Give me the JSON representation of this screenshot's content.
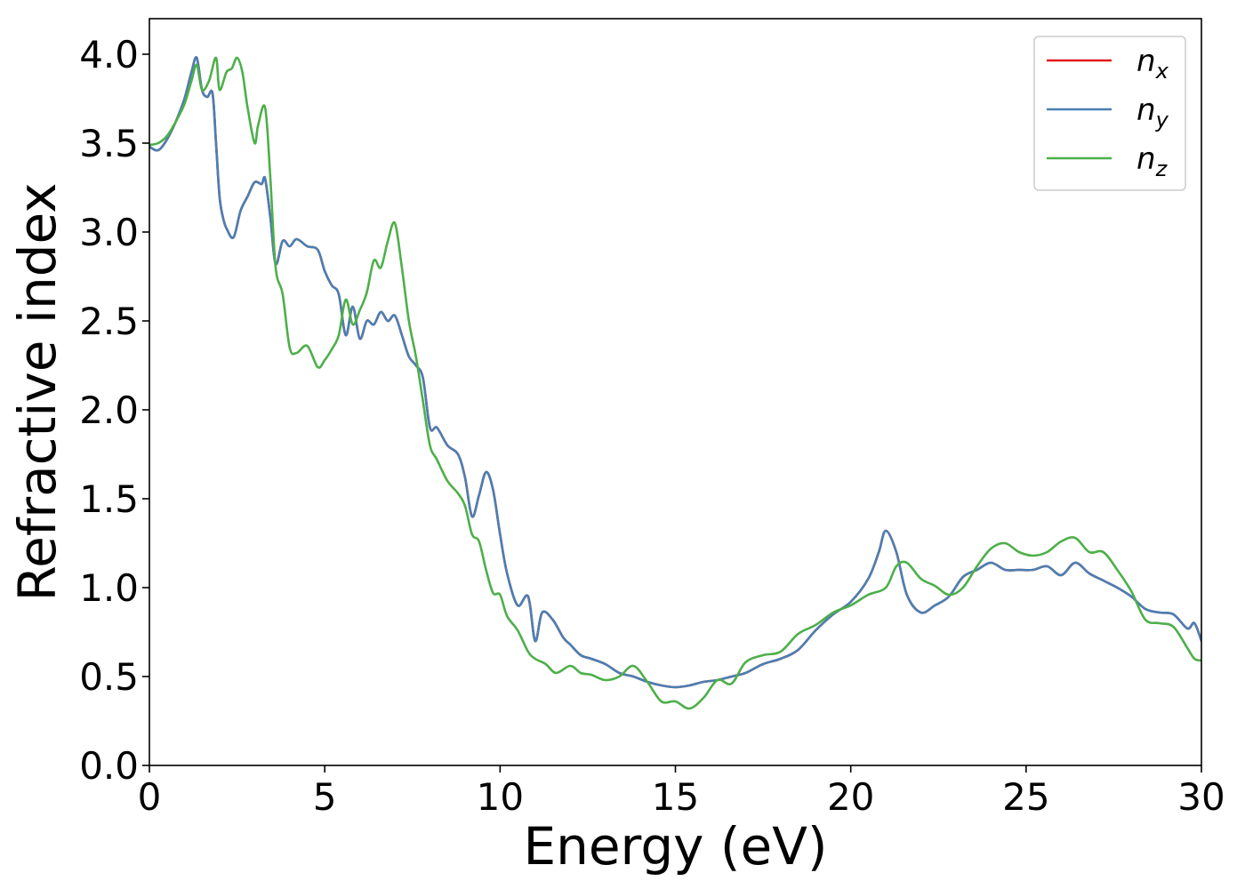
{
  "chart_data": {
    "type": "line",
    "title": "",
    "xlabel": "Energy (eV)",
    "ylabel": "Refractive index",
    "xlim": [
      0,
      30
    ],
    "ylim": [
      0,
      4.2
    ],
    "xticks": [
      0,
      5,
      10,
      15,
      20,
      25,
      30
    ],
    "yticks": [
      0.0,
      0.5,
      1.0,
      1.5,
      2.0,
      2.5,
      3.0,
      3.5,
      4.0
    ],
    "xtick_labels": [
      "0",
      "5",
      "10",
      "15",
      "20",
      "25",
      "30"
    ],
    "ytick_labels": [
      "0.0",
      "0.5",
      "1.0",
      "1.5",
      "2.0",
      "2.5",
      "3.0",
      "3.5",
      "4.0"
    ],
    "grid": false,
    "legend_position": "top-right",
    "series": [
      {
        "name": "n_x",
        "label_main": "n",
        "label_sub": "x",
        "color": "#e41a1c",
        "x": [
          0,
          0.25,
          0.5,
          0.75,
          1.0,
          1.2,
          1.35,
          1.5,
          1.65,
          1.8,
          1.9,
          2.0,
          2.1,
          2.2,
          2.4,
          2.6,
          2.8,
          3.0,
          3.2,
          3.3,
          3.45,
          3.6,
          3.8,
          4.0,
          4.2,
          4.5,
          4.8,
          5.0,
          5.2,
          5.4,
          5.6,
          5.8,
          6.0,
          6.2,
          6.4,
          6.6,
          6.8,
          7.0,
          7.2,
          7.4,
          7.6,
          7.8,
          8.0,
          8.2,
          8.5,
          8.8,
          9.0,
          9.2,
          9.4,
          9.6,
          9.8,
          10.0,
          10.2,
          10.5,
          10.8,
          11.0,
          11.2,
          11.5,
          11.8,
          12.0,
          12.3,
          12.6,
          13.0,
          13.4,
          13.8,
          14.2,
          14.6,
          15.0,
          15.4,
          15.8,
          16.2,
          16.6,
          17.0,
          17.5,
          18.0,
          18.5,
          19.0,
          19.5,
          20.0,
          20.5,
          20.8,
          21.0,
          21.3,
          21.6,
          22.0,
          22.4,
          22.8,
          23.2,
          23.6,
          24.0,
          24.4,
          24.8,
          25.2,
          25.6,
          26.0,
          26.4,
          26.8,
          27.2,
          27.6,
          28.0,
          28.4,
          28.8,
          29.2,
          29.6,
          29.8,
          30.0
        ],
        "values": [
          3.48,
          3.46,
          3.52,
          3.62,
          3.75,
          3.9,
          3.98,
          3.8,
          3.76,
          3.78,
          3.5,
          3.2,
          3.08,
          3.02,
          2.97,
          3.12,
          3.2,
          3.28,
          3.27,
          3.3,
          3.08,
          2.82,
          2.95,
          2.92,
          2.96,
          2.92,
          2.9,
          2.78,
          2.7,
          2.65,
          2.42,
          2.58,
          2.4,
          2.5,
          2.48,
          2.55,
          2.5,
          2.53,
          2.42,
          2.3,
          2.25,
          2.18,
          1.9,
          1.9,
          1.8,
          1.75,
          1.62,
          1.4,
          1.52,
          1.65,
          1.55,
          1.3,
          1.08,
          0.9,
          0.95,
          0.7,
          0.86,
          0.82,
          0.72,
          0.68,
          0.62,
          0.6,
          0.57,
          0.52,
          0.5,
          0.47,
          0.45,
          0.44,
          0.45,
          0.47,
          0.48,
          0.5,
          0.52,
          0.57,
          0.6,
          0.65,
          0.76,
          0.85,
          0.92,
          1.05,
          1.2,
          1.32,
          1.2,
          0.96,
          0.86,
          0.9,
          0.95,
          1.06,
          1.1,
          1.14,
          1.1,
          1.1,
          1.1,
          1.12,
          1.07,
          1.14,
          1.08,
          1.04,
          1.0,
          0.95,
          0.88,
          0.86,
          0.85,
          0.77,
          0.8,
          0.7
        ]
      },
      {
        "name": "n_y",
        "label_main": "n",
        "label_sub": "y",
        "color": "#4a7fb3",
        "x": [
          0,
          0.25,
          0.5,
          0.75,
          1.0,
          1.2,
          1.35,
          1.5,
          1.65,
          1.8,
          1.9,
          2.0,
          2.1,
          2.2,
          2.4,
          2.6,
          2.8,
          3.0,
          3.2,
          3.3,
          3.45,
          3.6,
          3.8,
          4.0,
          4.2,
          4.5,
          4.8,
          5.0,
          5.2,
          5.4,
          5.6,
          5.8,
          6.0,
          6.2,
          6.4,
          6.6,
          6.8,
          7.0,
          7.2,
          7.4,
          7.6,
          7.8,
          8.0,
          8.2,
          8.5,
          8.8,
          9.0,
          9.2,
          9.4,
          9.6,
          9.8,
          10.0,
          10.2,
          10.5,
          10.8,
          11.0,
          11.2,
          11.5,
          11.8,
          12.0,
          12.3,
          12.6,
          13.0,
          13.4,
          13.8,
          14.2,
          14.6,
          15.0,
          15.4,
          15.8,
          16.2,
          16.6,
          17.0,
          17.5,
          18.0,
          18.5,
          19.0,
          19.5,
          20.0,
          20.5,
          20.8,
          21.0,
          21.3,
          21.6,
          22.0,
          22.4,
          22.8,
          23.2,
          23.6,
          24.0,
          24.4,
          24.8,
          25.2,
          25.6,
          26.0,
          26.4,
          26.8,
          27.2,
          27.6,
          28.0,
          28.4,
          28.8,
          29.2,
          29.6,
          29.8,
          30.0
        ],
        "values": [
          3.48,
          3.46,
          3.52,
          3.62,
          3.75,
          3.9,
          3.98,
          3.8,
          3.76,
          3.78,
          3.5,
          3.2,
          3.08,
          3.02,
          2.97,
          3.12,
          3.2,
          3.28,
          3.27,
          3.3,
          3.08,
          2.82,
          2.95,
          2.92,
          2.96,
          2.92,
          2.9,
          2.78,
          2.7,
          2.65,
          2.42,
          2.58,
          2.4,
          2.5,
          2.48,
          2.55,
          2.5,
          2.53,
          2.42,
          2.3,
          2.25,
          2.18,
          1.9,
          1.9,
          1.8,
          1.75,
          1.62,
          1.4,
          1.52,
          1.65,
          1.55,
          1.3,
          1.08,
          0.9,
          0.95,
          0.7,
          0.86,
          0.82,
          0.72,
          0.68,
          0.62,
          0.6,
          0.57,
          0.52,
          0.5,
          0.47,
          0.45,
          0.44,
          0.45,
          0.47,
          0.48,
          0.5,
          0.52,
          0.57,
          0.6,
          0.65,
          0.76,
          0.85,
          0.92,
          1.05,
          1.2,
          1.32,
          1.2,
          0.96,
          0.86,
          0.9,
          0.95,
          1.06,
          1.1,
          1.14,
          1.1,
          1.1,
          1.1,
          1.12,
          1.07,
          1.14,
          1.08,
          1.04,
          1.0,
          0.95,
          0.88,
          0.86,
          0.85,
          0.77,
          0.8,
          0.7
        ]
      },
      {
        "name": "n_z",
        "label_main": "n",
        "label_sub": "z",
        "color": "#4daf4a",
        "x": [
          0,
          0.25,
          0.5,
          0.75,
          1.0,
          1.2,
          1.35,
          1.5,
          1.7,
          1.9,
          2.0,
          2.2,
          2.35,
          2.5,
          2.65,
          2.8,
          3.0,
          3.1,
          3.3,
          3.45,
          3.6,
          3.8,
          4.0,
          4.2,
          4.5,
          4.8,
          5.0,
          5.2,
          5.4,
          5.6,
          5.8,
          6.0,
          6.2,
          6.4,
          6.6,
          6.8,
          7.0,
          7.2,
          7.4,
          7.6,
          7.8,
          8.0,
          8.2,
          8.5,
          8.8,
          9.0,
          9.2,
          9.4,
          9.6,
          9.8,
          10.0,
          10.2,
          10.5,
          10.8,
          11.0,
          11.3,
          11.6,
          12.0,
          12.3,
          12.6,
          13.0,
          13.4,
          13.8,
          14.2,
          14.6,
          15.0,
          15.4,
          15.8,
          16.2,
          16.6,
          17.0,
          17.5,
          18.0,
          18.5,
          19.0,
          19.5,
          20.0,
          20.5,
          21.0,
          21.3,
          21.6,
          22.0,
          22.4,
          22.8,
          23.2,
          23.6,
          24.0,
          24.4,
          24.8,
          25.2,
          25.6,
          26.0,
          26.4,
          26.8,
          27.2,
          27.6,
          28.0,
          28.4,
          28.8,
          29.2,
          29.6,
          29.8,
          30.0
        ],
        "values": [
          3.49,
          3.5,
          3.54,
          3.62,
          3.72,
          3.85,
          3.94,
          3.8,
          3.85,
          3.98,
          3.8,
          3.9,
          3.92,
          3.98,
          3.9,
          3.7,
          3.5,
          3.6,
          3.7,
          3.3,
          2.8,
          2.65,
          2.35,
          2.32,
          2.36,
          2.24,
          2.28,
          2.34,
          2.42,
          2.62,
          2.48,
          2.56,
          2.66,
          2.84,
          2.8,
          2.95,
          3.05,
          2.8,
          2.5,
          2.3,
          2.05,
          1.8,
          1.72,
          1.6,
          1.53,
          1.46,
          1.3,
          1.26,
          1.1,
          0.97,
          0.96,
          0.84,
          0.76,
          0.64,
          0.6,
          0.57,
          0.52,
          0.56,
          0.52,
          0.51,
          0.48,
          0.5,
          0.56,
          0.47,
          0.36,
          0.36,
          0.32,
          0.38,
          0.48,
          0.46,
          0.58,
          0.62,
          0.64,
          0.74,
          0.79,
          0.86,
          0.9,
          0.96,
          1.0,
          1.12,
          1.14,
          1.05,
          1.01,
          0.96,
          1.0,
          1.12,
          1.22,
          1.25,
          1.2,
          1.18,
          1.2,
          1.26,
          1.28,
          1.2,
          1.2,
          1.1,
          0.98,
          0.82,
          0.8,
          0.78,
          0.66,
          0.6,
          0.59
        ]
      }
    ]
  }
}
